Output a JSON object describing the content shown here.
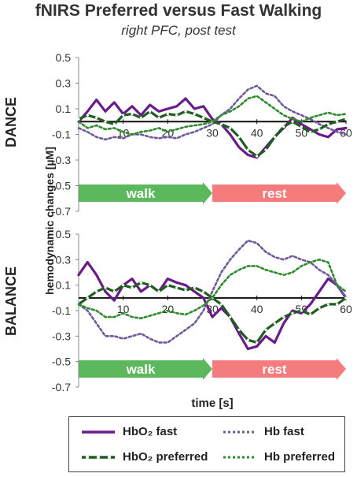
{
  "title": "fNIRS Preferred versus Fast Walking",
  "subtitle": "right PFC, post test",
  "chart_data": {
    "type": "line",
    "ylabel": "hemodynamic changes [µM]",
    "xlabel": "time [s]",
    "xlim": [
      0,
      60
    ],
    "ylim": [
      -0.7,
      0.5
    ],
    "xticks": [
      "10",
      "20",
      "30",
      "40",
      "50",
      "60"
    ],
    "yticks": [
      "0.5",
      "0.3",
      "0.1",
      "-0.1",
      "-0.3",
      "-0.5",
      "-0.7"
    ],
    "grid": false,
    "phases": [
      {
        "label": "walk",
        "start": 0,
        "end": 30,
        "color": "#5cb85c"
      },
      {
        "label": "rest",
        "start": 30,
        "end": 60,
        "color": "#f47c7c"
      }
    ],
    "legend": [
      {
        "name": "HbO₂ fast",
        "color": "#6a1b8a",
        "style": "solid"
      },
      {
        "name": "Hb fast",
        "color": "#6e5a9a",
        "style": "dotted"
      },
      {
        "name": "HbO₂ preferred",
        "color": "#1f5c1f",
        "style": "solid-marked"
      },
      {
        "name": "Hb preferred",
        "color": "#2e8b2e",
        "style": "dotted"
      }
    ],
    "panels": [
      {
        "name": "DANCE",
        "x": [
          0,
          2,
          4,
          6,
          8,
          10,
          12,
          14,
          16,
          18,
          20,
          22,
          24,
          26,
          28,
          30,
          32,
          34,
          36,
          38,
          40,
          42,
          44,
          46,
          48,
          50,
          52,
          54,
          56,
          58,
          60
        ],
        "series": [
          {
            "name": "HbO₂ fast",
            "values": [
              0.0,
              0.08,
              0.17,
              0.08,
              0.15,
              0.06,
              0.12,
              0.05,
              0.13,
              0.08,
              0.1,
              0.12,
              0.18,
              0.1,
              0.12,
              0.02,
              -0.02,
              -0.1,
              -0.2,
              -0.26,
              -0.28,
              -0.2,
              -0.12,
              -0.05,
              0.03,
              -0.02,
              -0.06,
              -0.1,
              -0.12,
              -0.06,
              -0.05
            ]
          },
          {
            "name": "Hb fast",
            "values": [
              -0.05,
              -0.08,
              -0.12,
              -0.14,
              -0.12,
              -0.13,
              -0.1,
              -0.1,
              -0.12,
              -0.13,
              -0.12,
              -0.13,
              -0.1,
              -0.08,
              -0.05,
              -0.02,
              0.05,
              0.1,
              0.18,
              0.25,
              0.28,
              0.22,
              0.2,
              0.12,
              0.08,
              0.05,
              0.02,
              -0.02,
              -0.05,
              -0.08,
              -0.1
            ]
          },
          {
            "name": "HbO₂ preferred",
            "values": [
              0.02,
              0.05,
              0.03,
              0.0,
              -0.02,
              0.05,
              0.06,
              0.03,
              0.08,
              0.03,
              0.06,
              0.05,
              0.08,
              0.06,
              0.03,
              0.0,
              -0.02,
              -0.05,
              -0.12,
              -0.22,
              -0.27,
              -0.22,
              -0.12,
              -0.04,
              0.0,
              -0.04,
              -0.08,
              -0.06,
              -0.02,
              0.0,
              0.02
            ]
          },
          {
            "name": "Hb preferred",
            "values": [
              0.0,
              -0.05,
              -0.03,
              -0.06,
              -0.05,
              -0.08,
              -0.1,
              -0.08,
              -0.07,
              -0.05,
              -0.08,
              -0.06,
              -0.04,
              -0.03,
              -0.02,
              0.0,
              0.05,
              0.08,
              0.12,
              0.18,
              0.2,
              0.15,
              0.1,
              0.05,
              0.02,
              0.0,
              0.03,
              0.05,
              0.07,
              0.05,
              0.06
            ]
          }
        ]
      },
      {
        "name": "BALANCE",
        "x": [
          0,
          2,
          4,
          6,
          8,
          10,
          12,
          14,
          16,
          18,
          20,
          22,
          24,
          26,
          28,
          30,
          32,
          34,
          36,
          38,
          40,
          42,
          44,
          46,
          48,
          50,
          52,
          54,
          56,
          58,
          60
        ],
        "series": [
          {
            "name": "HbO₂ fast",
            "values": [
              0.18,
              0.28,
              0.18,
              0.05,
              -0.02,
              0.1,
              0.15,
              0.05,
              0.1,
              0.05,
              0.15,
              0.12,
              0.1,
              0.05,
              0.0,
              -0.15,
              -0.08,
              -0.15,
              -0.28,
              -0.4,
              -0.38,
              -0.3,
              -0.35,
              -0.2,
              -0.1,
              -0.12,
              -0.05,
              0.05,
              0.15,
              0.1,
              0.0
            ]
          },
          {
            "name": "Hb fast",
            "values": [
              -0.05,
              -0.1,
              -0.2,
              -0.3,
              -0.3,
              -0.32,
              -0.3,
              -0.28,
              -0.32,
              -0.35,
              -0.35,
              -0.3,
              -0.25,
              -0.2,
              -0.1,
              0.05,
              0.2,
              0.3,
              0.38,
              0.45,
              0.43,
              0.36,
              0.32,
              0.3,
              0.33,
              0.3,
              0.28,
              0.22,
              0.18,
              0.1,
              0.0
            ]
          },
          {
            "name": "HbO₂ preferred",
            "values": [
              -0.05,
              0.0,
              0.05,
              0.08,
              0.05,
              0.1,
              0.08,
              0.12,
              0.1,
              0.05,
              0.1,
              0.08,
              0.06,
              0.08,
              0.05,
              0.0,
              -0.05,
              -0.15,
              -0.25,
              -0.33,
              -0.35,
              -0.25,
              -0.2,
              -0.15,
              -0.12,
              -0.1,
              -0.13,
              -0.08,
              -0.05,
              -0.05,
              0.0
            ]
          },
          {
            "name": "Hb preferred",
            "values": [
              -0.05,
              -0.08,
              -0.1,
              -0.15,
              -0.15,
              -0.12,
              -0.15,
              -0.16,
              -0.14,
              -0.12,
              -0.1,
              -0.12,
              -0.13,
              -0.1,
              -0.06,
              0.0,
              0.1,
              0.18,
              0.22,
              0.25,
              0.25,
              0.22,
              0.2,
              0.18,
              0.2,
              0.25,
              0.28,
              0.3,
              0.28,
              0.1,
              0.05
            ]
          }
        ]
      }
    ]
  }
}
